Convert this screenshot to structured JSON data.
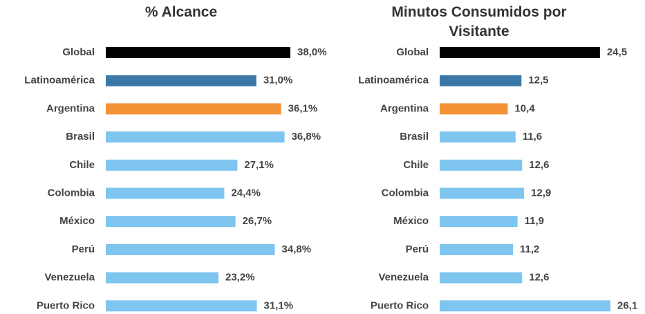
{
  "chart_data": [
    {
      "type": "bar",
      "orientation": "horizontal",
      "title": "% Alcance",
      "categories": [
        "Global",
        "Latinoamérica",
        "Argentina",
        "Brasil",
        "Chile",
        "Colombia",
        "México",
        "Perú",
        "Venezuela",
        "Puerto Rico"
      ],
      "values": [
        38.0,
        31.0,
        36.1,
        36.8,
        27.1,
        24.4,
        26.7,
        34.8,
        23.2,
        31.1
      ],
      "value_labels": [
        "38,0%",
        "31,0%",
        "36,1%",
        "36,8%",
        "27,1%",
        "24,4%",
        "26,7%",
        "34,8%",
        "23,2%",
        "31,1%"
      ],
      "colors": [
        "#000000",
        "#3a78a8",
        "#f39237",
        "#7ec5ef",
        "#7ec5ef",
        "#7ec5ef",
        "#7ec5ef",
        "#7ec5ef",
        "#7ec5ef",
        "#7ec5ef"
      ]
    },
    {
      "type": "bar",
      "orientation": "horizontal",
      "title": "Minutos Consumidos por Visitante",
      "categories": [
        "Global",
        "Latinoamérica",
        "Argentina",
        "Brasil",
        "Chile",
        "Colombia",
        "México",
        "Perú",
        "Venezuela",
        "Puerto Rico"
      ],
      "values": [
        24.5,
        12.5,
        10.4,
        11.6,
        12.6,
        12.9,
        11.9,
        11.2,
        12.6,
        26.1
      ],
      "value_labels": [
        "24,5",
        "12,5",
        "10,4",
        "11,6",
        "12,6",
        "12,9",
        "11,9",
        "11,2",
        "12,6",
        "26,1"
      ],
      "colors": [
        "#000000",
        "#3a78a8",
        "#f39237",
        "#7ec5ef",
        "#7ec5ef",
        "#7ec5ef",
        "#7ec5ef",
        "#7ec5ef",
        "#7ec5ef",
        "#7ec5ef"
      ]
    }
  ]
}
